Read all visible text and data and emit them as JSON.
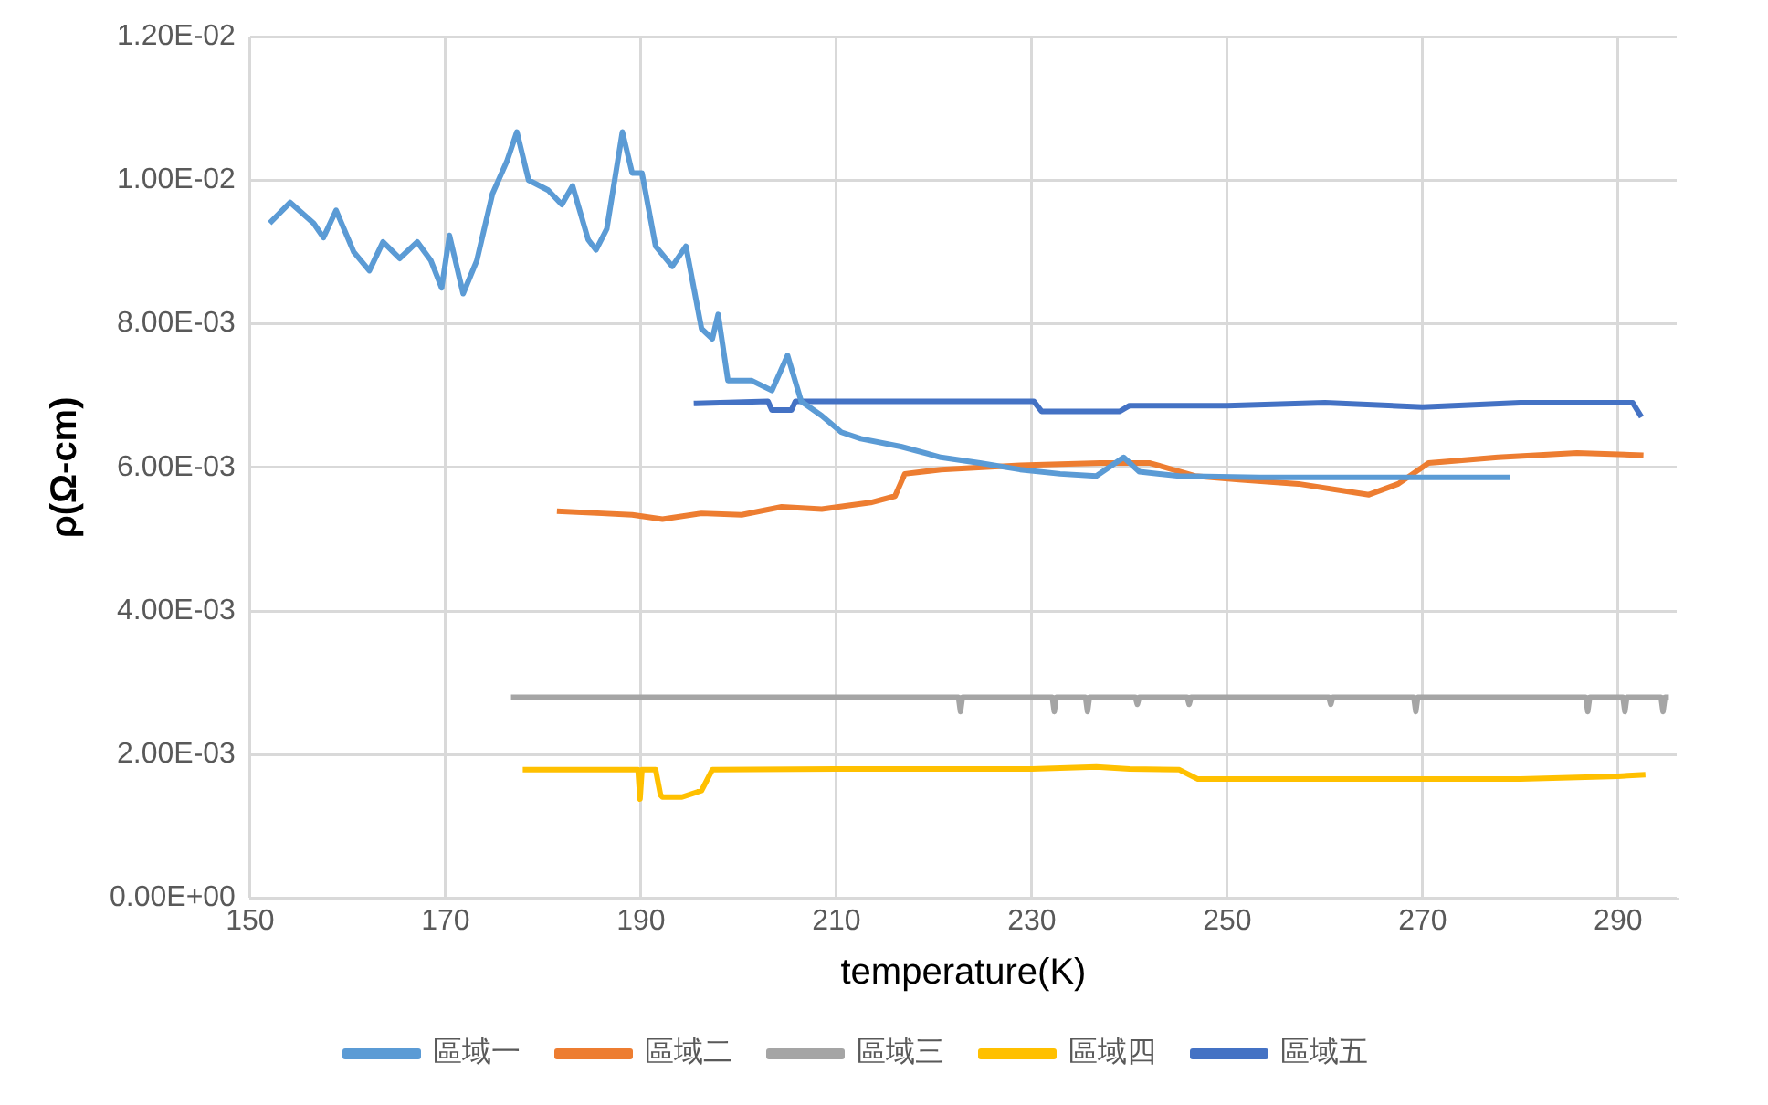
{
  "chart_data": {
    "type": "line",
    "xlabel": "temperature(K)",
    "ylabel": "ρ(Ω-cm)",
    "xlim": [
      150,
      296
    ],
    "xticks": [
      150,
      170,
      190,
      210,
      230,
      250,
      270,
      290
    ],
    "ylim": [
      0,
      0.012
    ],
    "yticks": [
      {
        "value": 0,
        "label": "0.00E+00"
      },
      {
        "value": 0.002,
        "label": "2.00E-03"
      },
      {
        "value": 0.004,
        "label": "4.00E-03"
      },
      {
        "value": 0.006,
        "label": "6.00E-03"
      },
      {
        "value": 0.008,
        "label": "8.00E-03"
      },
      {
        "value": 0.01,
        "label": "1.00E-02"
      },
      {
        "value": 0.012,
        "label": "1.20E-02"
      }
    ],
    "grid": true,
    "legend": "bottom",
    "marker": "none",
    "line_style": "solid",
    "series": [
      {
        "name": "區域一",
        "color": "#5b9bd5",
        "x": [
          152.0,
          154.1,
          156.5,
          157.5,
          158.8,
          160.6,
          162.2,
          163.6,
          165.3,
          167.1,
          168.5,
          169.6,
          170.4,
          171.8,
          173.2,
          174.8,
          176.3,
          177.3,
          178.5,
          180.5,
          181.9,
          183.0,
          184.6,
          185.4,
          186.5,
          188.1,
          189.1,
          190.1,
          191.5,
          193.2,
          194.6,
          196.2,
          197.3,
          197.9,
          198.9,
          201.3,
          203.4,
          205.0,
          206.4,
          208.5,
          210.5,
          212.5,
          216.6,
          220.7,
          224.7,
          228.8,
          232.9,
          236.6,
          239.4,
          241.0,
          245.1,
          253.3,
          265.5,
          278.9
        ],
        "values": [
          0.0094,
          0.00969,
          0.0094,
          0.0092,
          0.00958,
          0.009,
          0.00874,
          0.00914,
          0.00891,
          0.00914,
          0.00888,
          0.0085,
          0.00923,
          0.00842,
          0.00888,
          0.00981,
          0.01027,
          0.01067,
          0.01,
          0.00986,
          0.00966,
          0.00992,
          0.00917,
          0.00903,
          0.00932,
          0.01067,
          0.0101,
          0.0101,
          0.00908,
          0.0088,
          0.00908,
          0.00793,
          0.00779,
          0.00813,
          0.00721,
          0.00721,
          0.00707,
          0.00756,
          0.00692,
          0.00672,
          0.00649,
          0.0064,
          0.00629,
          0.00614,
          0.00606,
          0.00597,
          0.00591,
          0.00588,
          0.00614,
          0.00594,
          0.00588,
          0.00586,
          0.00586,
          0.00586
        ]
      },
      {
        "name": "區域二",
        "color": "#ed7d31",
        "x": [
          181.4,
          186.0,
          189.1,
          192.2,
          196.2,
          200.3,
          204.4,
          208.5,
          213.5,
          216.0,
          217.0,
          220.7,
          228.8,
          237.0,
          242.1,
          246.7,
          251.2,
          257.3,
          264.5,
          267.5,
          270.6,
          277.7,
          285.8,
          292.6
        ],
        "values": [
          0.00539,
          0.00536,
          0.00534,
          0.00528,
          0.00536,
          0.00534,
          0.00545,
          0.00542,
          0.00551,
          0.0056,
          0.00591,
          0.00597,
          0.00603,
          0.00606,
          0.00606,
          0.00588,
          0.00583,
          0.00577,
          0.00562,
          0.00577,
          0.00606,
          0.00614,
          0.0062,
          0.00617
        ]
      },
      {
        "name": "區域三",
        "color": "#a5a5a5",
        "x": [
          176.7,
          222.5,
          222.7,
          222.9,
          232.1,
          232.3,
          232.5,
          235.5,
          235.7,
          235.9,
          240.6,
          240.8,
          241.0,
          245.9,
          246.1,
          246.3,
          260.4,
          260.6,
          260.8,
          269.1,
          269.3,
          269.5,
          286.7,
          286.9,
          287.1,
          290.5,
          290.7,
          290.9,
          294.4,
          294.6,
          294.8,
          295.2
        ],
        "values": [
          0.0028,
          0.0028,
          0.0026,
          0.0028,
          0.0028,
          0.0026,
          0.0028,
          0.0028,
          0.0026,
          0.0028,
          0.0028,
          0.0027,
          0.0028,
          0.0028,
          0.0027,
          0.0028,
          0.0028,
          0.0027,
          0.0028,
          0.0028,
          0.0026,
          0.0028,
          0.0028,
          0.0026,
          0.0028,
          0.0028,
          0.0026,
          0.0028,
          0.0028,
          0.0026,
          0.0028,
          0.0028
        ]
      },
      {
        "name": "區域四",
        "color": "#ffc000",
        "x": [
          177.9,
          189.7,
          189.9,
          190.1,
          190.5,
          191.5,
          192.0,
          192.2,
          194.2,
          196.2,
          197.3,
          210,
          230,
          236.6,
          240,
          245.1,
          247,
          260,
          280,
          290,
          292.8
        ],
        "values": [
          0.00179,
          0.00179,
          0.00138,
          0.00179,
          0.00179,
          0.00179,
          0.00144,
          0.00141,
          0.00141,
          0.0015,
          0.00179,
          0.0018,
          0.0018,
          0.00183,
          0.0018,
          0.00179,
          0.00166,
          0.00166,
          0.00166,
          0.0017,
          0.00172
        ]
      },
      {
        "name": "區域五",
        "color": "#4472c4",
        "x": [
          195.4,
          203.0,
          203.4,
          205.4,
          205.8,
          212,
          225,
          230.2,
          231,
          239,
          240,
          250,
          260,
          270,
          280,
          290,
          291.5,
          292.4
        ],
        "values": [
          0.00689,
          0.00692,
          0.0068,
          0.0068,
          0.00692,
          0.00692,
          0.00692,
          0.00692,
          0.00678,
          0.00678,
          0.00686,
          0.00686,
          0.0069,
          0.00684,
          0.0069,
          0.0069,
          0.0069,
          0.0067
        ]
      }
    ]
  }
}
